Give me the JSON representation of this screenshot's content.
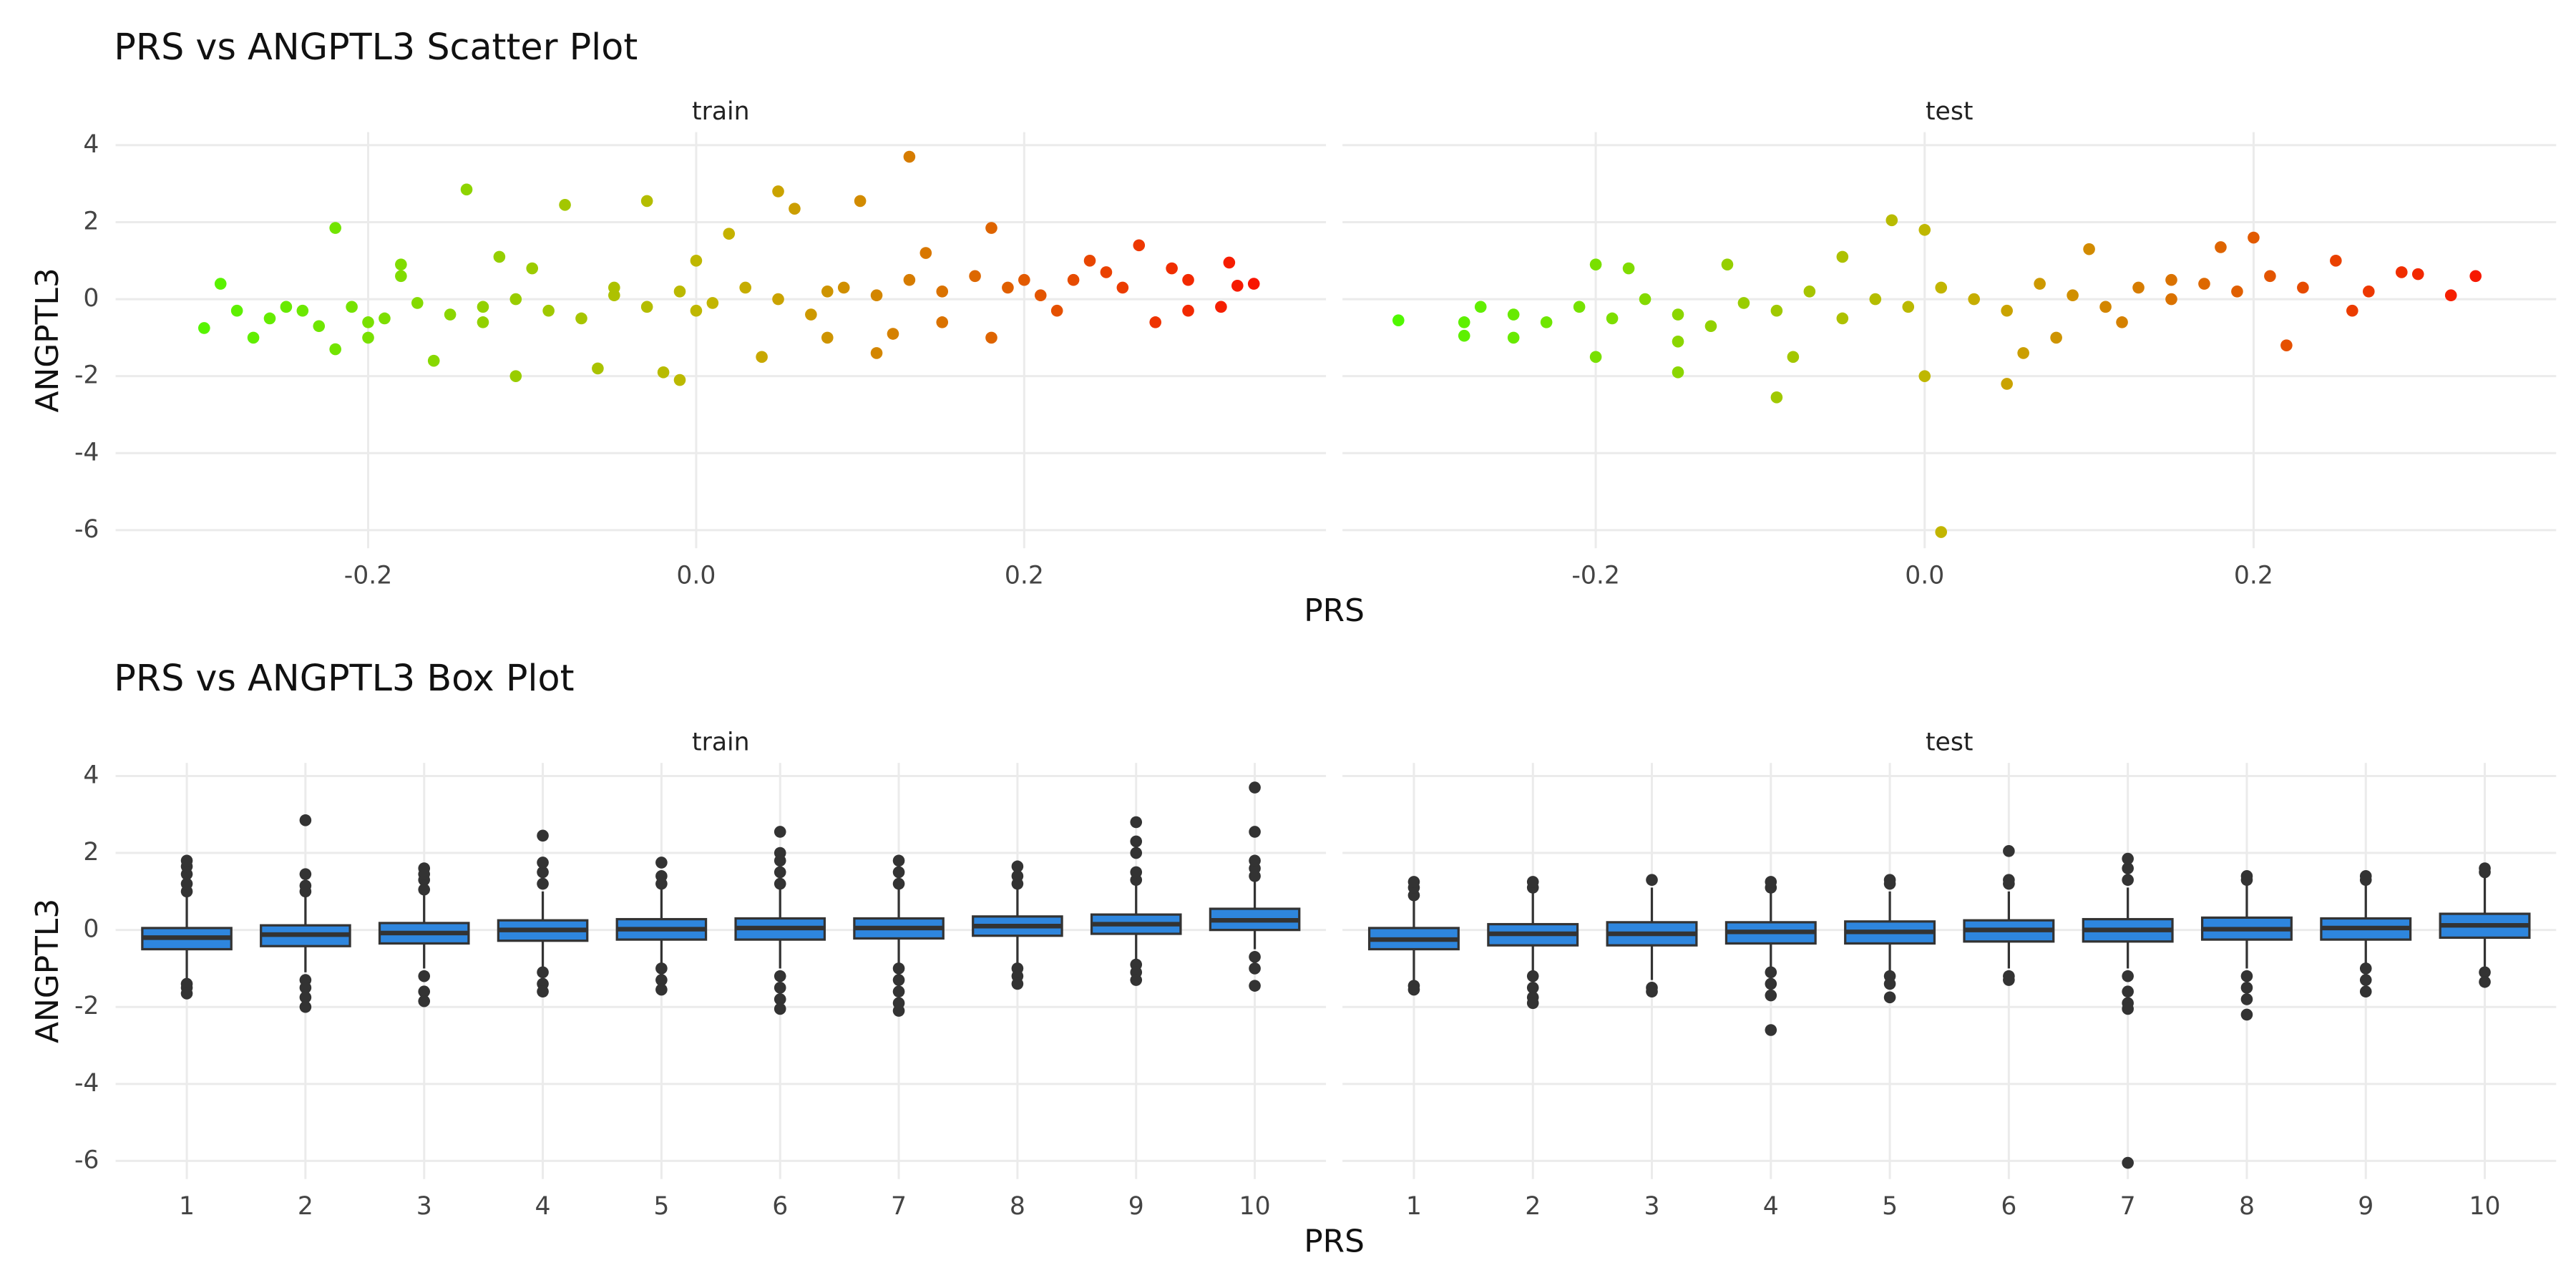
{
  "chart_data": [
    {
      "type": "scatter",
      "title": "PRS vs ANGPTL3 Scatter Plot",
      "x_label": "PRS",
      "y_label": "ANGPTL3",
      "xlim": [
        -0.354,
        0.384
      ],
      "ylim": [
        -6.47,
        4.34
      ],
      "xticks": [
        -0.2,
        {
          "value": 0,
          "label": "0.0"
        },
        0.2
      ],
      "yticks": [
        -6,
        -4,
        -2,
        0,
        2,
        4
      ],
      "grid": true,
      "color_scale": [
        "#44ff00",
        "#c4b400",
        "#ff0000"
      ],
      "panels": [
        {
          "name": "train",
          "x": [
            -0.3,
            -0.29,
            -0.28,
            -0.27,
            -0.25,
            -0.22,
            -0.22,
            -0.2,
            -0.18,
            -0.16,
            -0.14,
            -0.13,
            -0.12,
            -0.11,
            -0.08,
            -0.06,
            -0.05,
            -0.03,
            -0.02,
            -0.01,
            0,
            0.02,
            0.04,
            0.05,
            0.06,
            0.08,
            0.1,
            0.11,
            0.13,
            0.14,
            0.15,
            0.18,
            0.18,
            0.2,
            0.22,
            0.24,
            0.26,
            0.28,
            0.29,
            0.3,
            0.32,
            0.325,
            0.33,
            0.34,
            0.3,
            0.27,
            -0.26,
            -0.24,
            -0.23,
            -0.21,
            -0.19,
            -0.17,
            -0.15,
            -0.13,
            -0.11,
            -0.09,
            -0.07,
            -0.05,
            -0.03,
            -0.01,
            0.01,
            0.03,
            0.05,
            0.07,
            0.09,
            0.11,
            0.13,
            0.15,
            0.17,
            0.19,
            0.21,
            0.23,
            0.25,
            -0.18,
            -0.1,
            0.0,
            0.08,
            -0.2,
            0.12
          ],
          "y": [
            -0.75,
            0.4,
            -0.3,
            -1.0,
            -0.2,
            1.85,
            -1.3,
            -0.6,
            0.9,
            -1.6,
            2.85,
            -0.2,
            1.1,
            -2.0,
            2.45,
            -1.8,
            0.3,
            2.55,
            -1.9,
            -2.1,
            -0.3,
            1.7,
            -1.5,
            2.8,
            2.35,
            0.2,
            2.55,
            -1.4,
            3.7,
            1.2,
            -0.6,
            1.85,
            -1.0,
            0.5,
            -0.3,
            1.0,
            0.3,
            -0.6,
            0.8,
            -0.3,
            -0.2,
            0.95,
            0.35,
            0.4,
            0.5,
            1.4,
            -0.5,
            -0.3,
            -0.7,
            -0.2,
            -0.5,
            -0.1,
            -0.4,
            -0.6,
            0.0,
            -0.3,
            -0.5,
            0.1,
            -0.2,
            0.2,
            -0.1,
            0.3,
            0.0,
            -0.4,
            0.3,
            0.1,
            0.5,
            0.2,
            0.6,
            0.3,
            0.1,
            0.5,
            0.7,
            0.6,
            0.8,
            1.0,
            -1.0,
            -1.0,
            -0.9
          ]
        },
        {
          "name": "test",
          "x": [
            -0.32,
            -0.28,
            -0.28,
            -0.27,
            -0.25,
            -0.2,
            -0.2,
            -0.15,
            -0.12,
            -0.09,
            -0.08,
            -0.02,
            0.0,
            0.0,
            0.01,
            0.05,
            0.06,
            0.1,
            0.12,
            0.18,
            0.2,
            0.22,
            0.25,
            0.27,
            0.29,
            0.3,
            0.32,
            0.335,
            0.26,
            0.15,
            -0.25,
            -0.23,
            -0.21,
            -0.19,
            -0.17,
            -0.15,
            -0.13,
            -0.11,
            -0.09,
            -0.07,
            -0.05,
            -0.03,
            -0.01,
            0.01,
            0.03,
            0.05,
            0.07,
            0.09,
            0.11,
            0.13,
            0.15,
            0.17,
            0.19,
            0.21,
            0.23,
            -0.18,
            -0.05,
            0.08,
            -0.15
          ],
          "y": [
            -0.55,
            -0.95,
            -0.6,
            -0.2,
            -1.0,
            0.9,
            -1.5,
            -1.9,
            0.9,
            -2.55,
            -1.5,
            2.05,
            1.8,
            -2.0,
            -6.05,
            -2.2,
            -1.4,
            1.3,
            -0.6,
            1.35,
            1.6,
            -1.2,
            1.0,
            0.2,
            0.7,
            0.65,
            0.1,
            0.6,
            -0.3,
            0.5,
            -0.4,
            -0.6,
            -0.2,
            -0.5,
            0.0,
            -0.4,
            -0.7,
            -0.1,
            -0.3,
            0.2,
            -0.5,
            0.0,
            -0.2,
            0.3,
            0.0,
            -0.3,
            0.4,
            0.1,
            -0.2,
            0.3,
            0.0,
            0.4,
            0.2,
            0.6,
            0.3,
            0.8,
            1.1,
            -1.0,
            -1.1
          ]
        }
      ]
    },
    {
      "type": "box",
      "title": "PRS vs ANGPTL3 Box Plot",
      "x_label": "PRS",
      "y_label": "ANGPTL3",
      "categories": [
        "1",
        "2",
        "3",
        "4",
        "5",
        "6",
        "7",
        "8",
        "9",
        "10"
      ],
      "ylim": [
        -6.47,
        4.34
      ],
      "yticks": [
        -6,
        -4,
        -2,
        0,
        2,
        4
      ],
      "grid": true,
      "color": "#2e86de",
      "edge_color": "#333333",
      "panels": [
        {
          "name": "train",
          "q1": [
            -0.5,
            -0.42,
            -0.35,
            -0.28,
            -0.25,
            -0.25,
            -0.22,
            -0.15,
            -0.1,
            0.0
          ],
          "median": [
            -0.2,
            -0.12,
            -0.08,
            0.0,
            0.02,
            0.05,
            0.05,
            0.1,
            0.15,
            0.25
          ],
          "q3": [
            0.05,
            0.12,
            0.18,
            0.25,
            0.28,
            0.3,
            0.3,
            0.35,
            0.4,
            0.55
          ],
          "whisker_low": [
            -1.3,
            -1.1,
            -1.0,
            -1.0,
            -0.95,
            -1.0,
            -0.95,
            -0.95,
            -0.85,
            -0.5
          ],
          "whisker_high": [
            0.85,
            0.9,
            0.9,
            1.0,
            1.1,
            1.1,
            1.1,
            1.15,
            1.2,
            1.3
          ],
          "outliers": [
            [
              1.0,
              1.2,
              1.45,
              1.65,
              1.8,
              -1.4,
              -1.5,
              -1.65
            ],
            [
              1.0,
              1.15,
              1.45,
              2.85,
              -1.3,
              -1.5,
              -1.75,
              -2.0
            ],
            [
              1.05,
              1.3,
              1.45,
              1.6,
              -1.2,
              -1.6,
              -1.85
            ],
            [
              1.2,
              1.5,
              1.75,
              2.45,
              -1.1,
              -1.4,
              -1.6
            ],
            [
              1.2,
              1.4,
              1.75,
              -1.0,
              -1.3,
              -1.55
            ],
            [
              1.2,
              1.5,
              1.8,
              2.0,
              2.55,
              -1.2,
              -1.5,
              -1.8,
              -2.05
            ],
            [
              1.2,
              1.5,
              1.8,
              -1.0,
              -1.3,
              -1.6,
              -1.9,
              -2.1
            ],
            [
              1.2,
              1.4,
              1.65,
              -1.0,
              -1.2,
              -1.4
            ],
            [
              1.3,
              1.5,
              2.0,
              2.3,
              2.8,
              -0.9,
              -1.1,
              -1.3
            ],
            [
              1.4,
              1.6,
              1.8,
              2.55,
              3.7,
              -0.7,
              -1.0,
              -1.45
            ]
          ]
        },
        {
          "name": "test",
          "q1": [
            -0.5,
            -0.4,
            -0.4,
            -0.35,
            -0.35,
            -0.3,
            -0.3,
            -0.25,
            -0.25,
            -0.2
          ],
          "median": [
            -0.25,
            -0.1,
            -0.1,
            -0.05,
            -0.05,
            0.0,
            0.0,
            0.02,
            0.05,
            0.12
          ],
          "q3": [
            0.05,
            0.15,
            0.2,
            0.2,
            0.22,
            0.25,
            0.28,
            0.32,
            0.3,
            0.42
          ],
          "whisker_low": [
            -1.3,
            -1.1,
            -1.3,
            -1.0,
            -1.1,
            -1.0,
            -1.0,
            -1.0,
            -0.9,
            -0.95
          ],
          "whisker_high": [
            0.8,
            1.0,
            1.1,
            1.0,
            1.0,
            1.0,
            1.1,
            1.2,
            1.2,
            1.4
          ],
          "outliers": [
            [
              0.9,
              1.1,
              1.25,
              -1.45,
              -1.55
            ],
            [
              1.1,
              1.25,
              -1.2,
              -1.5,
              -1.75,
              -1.9
            ],
            [
              1.3,
              -1.5,
              -1.6
            ],
            [
              1.1,
              1.25,
              -1.1,
              -1.4,
              -1.7,
              -2.6
            ],
            [
              1.2,
              1.3,
              -1.2,
              -1.4,
              -1.75
            ],
            [
              1.2,
              1.3,
              2.05,
              -1.2,
              -1.3
            ],
            [
              1.3,
              1.6,
              1.85,
              -1.2,
              -1.6,
              -1.9,
              -2.05,
              -6.05
            ],
            [
              1.3,
              1.4,
              -1.2,
              -1.5,
              -1.8,
              -2.2
            ],
            [
              1.3,
              1.4,
              -1.0,
              -1.3,
              -1.6
            ],
            [
              1.5,
              1.6,
              -1.1,
              -1.35
            ]
          ]
        }
      ]
    }
  ]
}
